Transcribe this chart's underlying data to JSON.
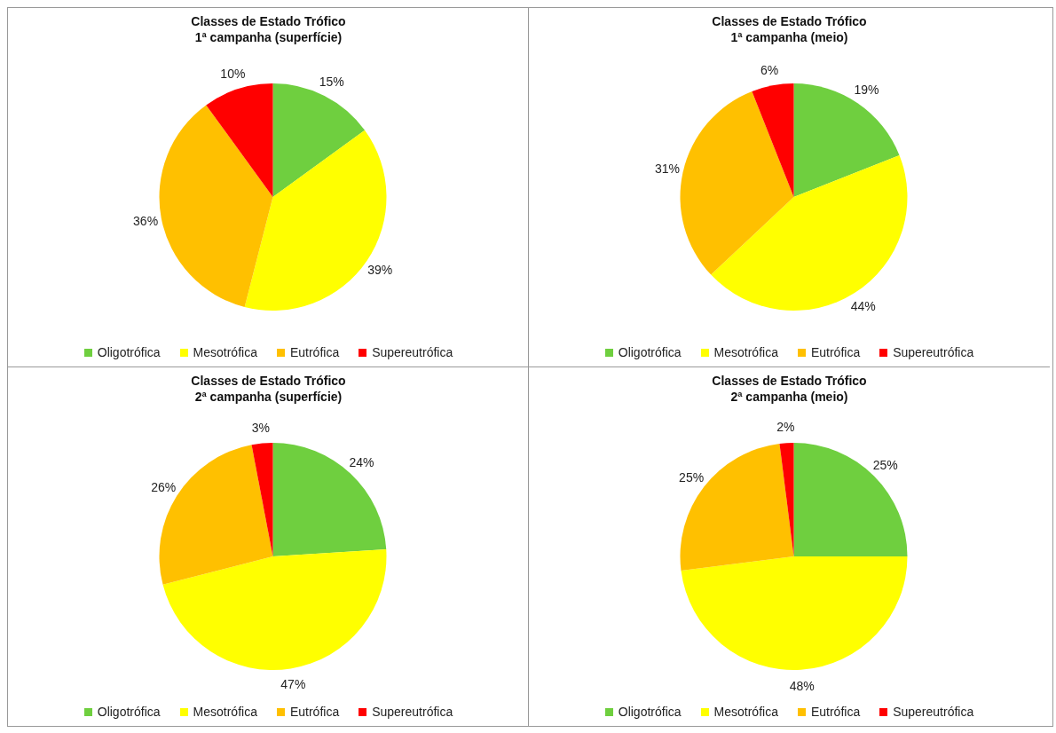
{
  "chart_data": [
    {
      "type": "pie",
      "title": "Classes de Estado Trófico",
      "subtitle": "1ª campanha (superfície)",
      "categories": [
        "Oligotrófica",
        "Mesotrófica",
        "Eutrófica",
        "Supereutrófica"
      ],
      "values": [
        15,
        39,
        36,
        10
      ],
      "value_labels": [
        "15%",
        "39%",
        "36%",
        "10%"
      ],
      "colors": [
        "#6fcf3f",
        "#ffff00",
        "#ffc000",
        "#ff0000"
      ],
      "legend": "bottom"
    },
    {
      "type": "pie",
      "title": "Classes de Estado Trófico",
      "subtitle": "1ª campanha (meio)",
      "categories": [
        "Oligotrófica",
        "Mesotrófica",
        "Eutrófica",
        "Supereutrófica"
      ],
      "values": [
        19,
        44,
        31,
        6
      ],
      "value_labels": [
        "19%",
        "44%",
        "31%",
        "6%"
      ],
      "colors": [
        "#6fcf3f",
        "#ffff00",
        "#ffc000",
        "#ff0000"
      ],
      "legend": "bottom"
    },
    {
      "type": "pie",
      "title": "Classes de Estado Trófico",
      "subtitle": "2ª campanha (superfície)",
      "categories": [
        "Oligotrófica",
        "Mesotrófica",
        "Eutrófica",
        "Supereutrófica"
      ],
      "values": [
        24,
        47,
        26,
        3
      ],
      "value_labels": [
        "24%",
        "47%",
        "26%",
        "3%"
      ],
      "colors": [
        "#6fcf3f",
        "#ffff00",
        "#ffc000",
        "#ff0000"
      ],
      "legend": "bottom"
    },
    {
      "type": "pie",
      "title": "Classes de Estado Trófico",
      "subtitle": "2ª campanha (meio)",
      "categories": [
        "Oligotrófica",
        "Mesotrófica",
        "Eutrófica",
        "Supereutrófica"
      ],
      "values": [
        25,
        48,
        25,
        2
      ],
      "value_labels": [
        "25%",
        "48%",
        "25%",
        "2%"
      ],
      "colors": [
        "#6fcf3f",
        "#ffff00",
        "#ffc000",
        "#ff0000"
      ],
      "legend": "bottom"
    }
  ]
}
